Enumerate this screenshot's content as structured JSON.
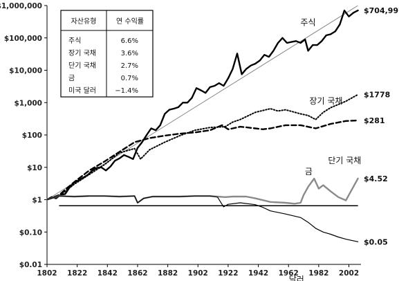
{
  "chart_data": {
    "type": "line",
    "y_scale": "log",
    "ylim": [
      0.01,
      1000000
    ],
    "xlim": [
      1802,
      2010
    ],
    "y_ticks": [
      0.01,
      0.1,
      1,
      10,
      100,
      1000,
      10000,
      100000,
      1000000
    ],
    "y_tick_labels": [
      "$0.01",
      "$0.10",
      "$1",
      "$10",
      "$100",
      "$1,000",
      "$10,000",
      "$100,000",
      "$1,000,000"
    ],
    "x_ticks": [
      1802,
      1822,
      1842,
      1862,
      1882,
      1902,
      1922,
      1942,
      1962,
      1982,
      2002
    ],
    "x_tick_labels": [
      "1802",
      "1822",
      "1842",
      "1862",
      "1882",
      "1902",
      "1922",
      "1942",
      "1962",
      "1982",
      "2002"
    ],
    "grid": false,
    "reference_lines": [
      {
        "kind": "trend",
        "x": [
          1802,
          2008
        ],
        "y": [
          1,
          1000000
        ],
        "color": "#888888"
      },
      {
        "kind": "horizontal",
        "x": [
          1810,
          2008
        ],
        "y": [
          0.65,
          0.65
        ],
        "color": "#000000"
      }
    ],
    "series": [
      {
        "name": "주식",
        "end_label": "$704,997",
        "style": "solid",
        "color": "#000000",
        "width": 2.4,
        "x": [
          1802,
          1805,
          1808,
          1811,
          1814,
          1817,
          1820,
          1823,
          1826,
          1829,
          1832,
          1835,
          1838,
          1841,
          1844,
          1847,
          1850,
          1853,
          1856,
          1859,
          1862,
          1865,
          1868,
          1871,
          1874,
          1877,
          1880,
          1883,
          1886,
          1889,
          1892,
          1895,
          1898,
          1901,
          1904,
          1907,
          1910,
          1913,
          1916,
          1919,
          1922,
          1925,
          1928,
          1931,
          1934,
          1937,
          1940,
          1943,
          1946,
          1949,
          1952,
          1955,
          1958,
          1961,
          1964,
          1967,
          1970,
          1973,
          1975,
          1978,
          1981,
          1984,
          1987,
          1990,
          1993,
          1996,
          1999,
          2002,
          2005,
          2008
        ],
        "y": [
          1,
          1.2,
          1.1,
          1.4,
          1.5,
          2.4,
          3.4,
          4,
          4.8,
          5.8,
          8,
          9.6,
          10,
          8,
          10.6,
          16,
          18.9,
          24,
          21,
          18,
          40,
          60,
          100,
          160,
          140,
          200,
          450,
          600,
          650,
          720,
          1000,
          1000,
          1400,
          2800,
          2400,
          2000,
          3000,
          3300,
          4000,
          3300,
          5600,
          11000,
          33000,
          7500,
          11000,
          14000,
          16000,
          20000,
          30000,
          26000,
          40000,
          70000,
          100000,
          70000,
          75000,
          80000,
          70000,
          90000,
          40000,
          60000,
          60000,
          80000,
          120000,
          130000,
          160000,
          260000,
          700000,
          460000,
          600000,
          704997
        ]
      },
      {
        "name": "장기 국채",
        "end_label": "$1778",
        "style": "dotted",
        "color": "#000000",
        "width": 2,
        "x": [
          1802,
          1810,
          1820,
          1830,
          1840,
          1850,
          1860,
          1864,
          1870,
          1880,
          1890,
          1900,
          1910,
          1920,
          1925,
          1930,
          1940,
          1950,
          1955,
          1960,
          1970,
          1975,
          1980,
          1985,
          1990,
          2000,
          2008
        ],
        "y": [
          1,
          1.3,
          3,
          6,
          12,
          28,
          38,
          18,
          35,
          60,
          95,
          140,
          170,
          180,
          250,
          300,
          500,
          650,
          550,
          600,
          450,
          400,
          300,
          500,
          700,
          1100,
          1778
        ]
      },
      {
        "name": "단기 국채",
        "end_label": "$281",
        "style": "dashed",
        "color": "#000000",
        "width": 2.4,
        "x": [
          1802,
          1810,
          1820,
          1830,
          1840,
          1850,
          1860,
          1870,
          1880,
          1890,
          1900,
          1910,
          1918,
          1922,
          1925,
          1930,
          1935,
          1940,
          1945,
          1950,
          1960,
          1970,
          1980,
          1990,
          2000,
          2008
        ],
        "y": [
          1,
          1.4,
          3.5,
          8,
          15,
          30,
          60,
          80,
          95,
          110,
          120,
          140,
          200,
          150,
          160,
          180,
          170,
          160,
          150,
          160,
          200,
          200,
          160,
          220,
          270,
          281
        ]
      },
      {
        "name": "금",
        "end_label": "$4.52",
        "style": "solid",
        "color": "#8a8a8a",
        "width": 2.4,
        "x": [
          1802,
          1810,
          1820,
          1830,
          1840,
          1850,
          1860,
          1862,
          1866,
          1872,
          1880,
          1890,
          1900,
          1910,
          1920,
          1925,
          1934,
          1940,
          1950,
          1960,
          1966,
          1970,
          1972,
          1975,
          1979,
          1982,
          1985,
          1990,
          1995,
          2000,
          2003,
          2008
        ],
        "y": [
          1,
          1.3,
          1.25,
          1.3,
          1.3,
          1.25,
          1.3,
          0.8,
          1.1,
          1.25,
          1.25,
          1.25,
          1.3,
          1.3,
          1.2,
          1.25,
          1.25,
          1.1,
          0.85,
          0.8,
          0.75,
          0.8,
          1.4,
          2.5,
          4.5,
          2.2,
          2.8,
          1.8,
          1.2,
          0.95,
          1.7,
          4.52
        ]
      },
      {
        "name": "달러",
        "end_label": "$0.05",
        "style": "solid",
        "color": "#000000",
        "width": 1.2,
        "x": [
          1802,
          1810,
          1820,
          1830,
          1840,
          1850,
          1860,
          1862,
          1866,
          1872,
          1880,
          1890,
          1900,
          1910,
          1915,
          1919,
          1922,
          1930,
          1940,
          1945,
          1950,
          1960,
          1970,
          1975,
          1980,
          1985,
          1990,
          1995,
          2000,
          2008
        ],
        "y": [
          1,
          1.3,
          1.25,
          1.3,
          1.3,
          1.25,
          1.3,
          0.8,
          1.1,
          1.25,
          1.25,
          1.25,
          1.3,
          1.3,
          1.2,
          0.6,
          0.72,
          0.8,
          0.7,
          0.58,
          0.45,
          0.36,
          0.28,
          0.2,
          0.13,
          0.1,
          0.085,
          0.07,
          0.06,
          0.05
        ]
      }
    ],
    "table": {
      "headers": [
        "자산유형",
        "연 수익률"
      ],
      "rows": [
        [
          "주식",
          "6.6%"
        ],
        [
          "장기 국채",
          "3.6%"
        ],
        [
          "단기 국채",
          "2.7%"
        ],
        [
          "금",
          "0.7%"
        ],
        [
          "미국 달러",
          "−1.4%"
        ]
      ]
    }
  }
}
